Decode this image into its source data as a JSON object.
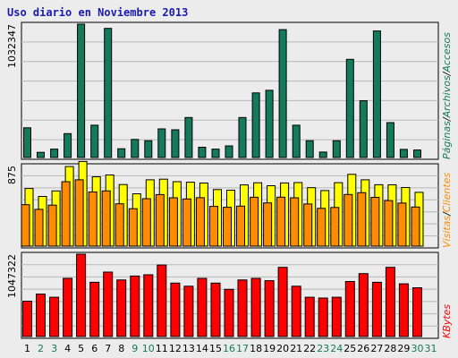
{
  "chart_data": {
    "type": "bar",
    "title": "Uso diario en Noviembre 2013",
    "categories": [
      "1",
      "2",
      "3",
      "4",
      "5",
      "6",
      "7",
      "8",
      "9",
      "10",
      "11",
      "12",
      "13",
      "14",
      "15",
      "16",
      "17",
      "18",
      "19",
      "20",
      "21",
      "22",
      "23",
      "24",
      "25",
      "26",
      "27",
      "28",
      "29",
      "30",
      "31"
    ],
    "weekend_days": [
      "2",
      "3",
      "9",
      "10",
      "16",
      "17",
      "23",
      "24",
      "30",
      "31"
    ],
    "colors": {
      "title": "#1a1ab0",
      "bars_top": "#137a5a",
      "bars_visits": "#ff8c00",
      "bars_clients": "#ffff00",
      "bars_bytes": "#ff0000",
      "weekend_label": "#137a5a",
      "weekday_label": "#000000"
    },
    "panels": [
      {
        "id": "top",
        "ylabel": "1032347",
        "ymax": 1032347,
        "side_labels": [
          {
            "text": "Páginas",
            "color": "#137a5a"
          },
          {
            "text": "/",
            "color": "#000000"
          },
          {
            "text": "Archivos",
            "color": "#137a5a"
          },
          {
            "text": "/",
            "color": "#000000"
          },
          {
            "text": "Accesos",
            "color": "#137a5a"
          }
        ],
        "series": [
          {
            "values": [
              230000,
              40000,
              65000,
              185000,
              1032347,
              250000,
              1000000,
              68000,
              140000,
              130000,
              222000,
              215000,
              310000,
              80000,
              65000,
              90000,
              310000,
              500000,
              520000,
              990000,
              250000,
              130000,
              42000,
              130000,
              760000,
              440000,
              980000,
              270000,
              63000,
              58000
            ]
          }
        ]
      },
      {
        "id": "middle",
        "ylabel": "875",
        "ymax": 875,
        "side_labels": [
          {
            "text": "Visitas",
            "color": "#ff8c00"
          },
          {
            "text": "/",
            "color": "#000000"
          },
          {
            "text": "Clientes",
            "color": "#ff8c00"
          }
        ],
        "series": [
          {
            "name": "Clientes",
            "values": [
              626,
              540,
              600,
              864,
              920,
              753,
              773,
              669,
              569,
              720,
              727,
              700,
              694,
              685,
              614,
              608,
              665,
              688,
              656,
              686,
              690,
              635,
              604,
              689,
              780,
              720,
              667,
              666,
              637,
              584
            ]
          },
          {
            "name": "Visitas",
            "values": [
              450,
              400,
              445,
              700,
              720,
              588,
              600,
              460,
              406,
              515,
              560,
              525,
              512,
              526,
              432,
              422,
              435,
              531,
              470,
              532,
              525,
              458,
              410,
              420,
              561,
              580,
              530,
              495,
              468,
              425
            ]
          }
        ]
      },
      {
        "id": "bottom",
        "ylabel": "1047322",
        "ymax": 1047322,
        "side_labels": [
          {
            "text": "KBytes",
            "color": "#ff0000"
          }
        ],
        "series": [
          {
            "values": [
              450000,
              540000,
              500000,
              740000,
              1047322,
              690000,
              820000,
              720000,
              770000,
              785000,
              910000,
              680000,
              640000,
              740000,
              680000,
              600000,
              720000,
              740000,
              710000,
              880000,
              640000,
              500000,
              490000,
              500000,
              700000,
              800000,
              690000,
              880000,
              670000,
              620000
            ]
          }
        ]
      }
    ],
    "grid": true
  }
}
